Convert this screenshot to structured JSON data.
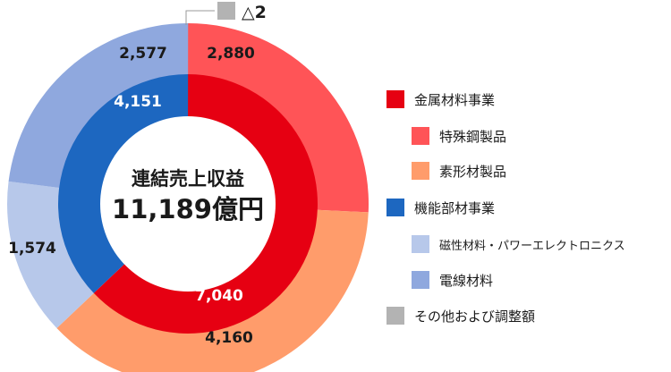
{
  "center": {
    "title": "連結売上収益",
    "total": "11,189億円"
  },
  "colors": {
    "metal": "#e60012",
    "specialty_steel": "#ff5457",
    "shaped_material": "#ff9c6b",
    "functional": "#1d67c0",
    "magnetic": "#b7c8ea",
    "wire": "#8fa8de",
    "other": "#b3b3b3"
  },
  "legend": [
    {
      "label": "金属材料事業",
      "color_key": "metal",
      "level": 0
    },
    {
      "label": "特殊鋼製品",
      "color_key": "specialty_steel",
      "level": 1
    },
    {
      "label": "素形材製品",
      "color_key": "shaped_material",
      "level": 1
    },
    {
      "label": "機能部材事業",
      "color_key": "functional",
      "level": 0
    },
    {
      "label": "磁性材料・パワーエレクトロニクス",
      "color_key": "magnetic",
      "level": 1
    },
    {
      "label": "電線材料",
      "color_key": "wire",
      "level": 1
    },
    {
      "label": "その他および調整額",
      "color_key": "other",
      "level": 0
    }
  ],
  "chart_data": {
    "type": "pie",
    "total": 11189,
    "inner_ring": [
      {
        "name": "金属材料事業",
        "value": 7040,
        "label": "7,040",
        "color_key": "metal"
      },
      {
        "name": "機能部材事業",
        "value": 4151,
        "label": "4,151",
        "color_key": "functional"
      }
    ],
    "outer_ring": [
      {
        "name": "特殊鋼製品",
        "value": 2880,
        "label": "2,880",
        "color_key": "specialty_steel"
      },
      {
        "name": "素形材製品",
        "value": 4160,
        "label": "4,160",
        "color_key": "shaped_material"
      },
      {
        "name": "磁性材料・パワーエレクトロニクス",
        "value": 1574,
        "label": "1,574",
        "color_key": "magnetic"
      },
      {
        "name": "電線材料",
        "value": 2577,
        "label": "2,577",
        "color_key": "wire"
      }
    ],
    "other": {
      "name": "その他および調整額",
      "value": -2,
      "label": "△2",
      "color_key": "other"
    }
  }
}
